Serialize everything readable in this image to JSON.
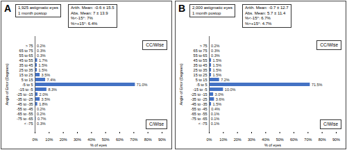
{
  "chart_data": [
    {
      "type": "bar",
      "orientation": "horizontal",
      "title": "A",
      "info": {
        "left": [
          "1,925 astigmatic eyes",
          "1 month postop"
        ],
        "right": [
          "Arith. Mean: -0.6 ± 15.5",
          "Abs. Mean: 7 ± 13.9",
          "%<-15°: 7%",
          "%>+15°: 6.4%"
        ]
      },
      "annotations": [
        "CC/Wise",
        "C/Wise"
      ],
      "xlabel": "% of eyes",
      "ylabel": "Angle of Error (Degrees)",
      "categories": [
        "> 75",
        "65 to 75",
        "55 to 65",
        "45 to 55",
        "35 to 45",
        "25 to 35",
        "15 to 25",
        "5 to 15",
        "-5 to 5",
        "-15 to -5",
        "-25 to -15",
        "-35 to -25",
        "-45 to -35",
        "-55 to -45",
        "-65 to -55",
        "-75 to -65",
        "< -75"
      ],
      "values": [
        0.2,
        0.3,
        0.3,
        1.7,
        1.5,
        1.5,
        3.5,
        7.4,
        71.0,
        8.3,
        2.0,
        3.5,
        1.8,
        0.2,
        0.2,
        0.7,
        0.3
      ],
      "value_labels": [
        "0.2%",
        "0.3%",
        "0.3%",
        "1.7%",
        "1.5%",
        "1.5%",
        "3.5%",
        "7.4%",
        "71.0%",
        "8.3%",
        "2.0%",
        "3.5%",
        "1.8%",
        "0.2%",
        "0.2%",
        "0.7%",
        "0.3%"
      ],
      "data_labels": true,
      "color": "#4472c4",
      "xlim": [
        0,
        90
      ],
      "xticks": [
        {
          "value": 0,
          "label": "0%"
        },
        {
          "value": 10,
          "label": "10%"
        },
        {
          "value": 20,
          "label": "20%"
        },
        {
          "value": 30,
          "label": "30%"
        },
        {
          "value": 40,
          "label": "40%"
        },
        {
          "value": 50,
          "label": "50%"
        },
        {
          "value": 60,
          "label": "60%"
        },
        {
          "value": 70,
          "label": "70%"
        },
        {
          "value": 80,
          "label": "80%"
        },
        {
          "value": 90,
          "label": "90%"
        }
      ],
      "grid": false
    },
    {
      "type": "bar",
      "orientation": "horizontal",
      "title": "B",
      "info": {
        "left": [
          "2,000 astigmatic eyes",
          "1 month postop"
        ],
        "right": [
          "Arith. Mean: -0.7 ± 12.7",
          "Abs. Mean: 5.7 ± 11.4",
          "%<-15°: 6.7%",
          "%>+15°: 4.7%"
        ]
      },
      "annotations": [
        "CC/Wise",
        "C/Wise"
      ],
      "xlabel": "% of eyes",
      "ylabel": "Angle of Error (Degrees)",
      "categories": [
        "> 75",
        "65 to 75",
        "55 to 65",
        "45 to 55",
        "35 to 45",
        "25 to 35",
        "15 to 25",
        "5 to 15",
        "-5 to 5",
        "-15 to -5",
        "-25 to -15",
        "-35 to -25",
        "-45 to -35",
        "-55 to -45",
        "-65 to -55",
        "-75 to -65",
        "< -75"
      ],
      "values": [
        0.2,
        0.3,
        0.3,
        1.5,
        1.5,
        1.5,
        1.5,
        7.2,
        71.5,
        10.0,
        3.0,
        3.6,
        1.5,
        0.4,
        0.1,
        0.1,
        0.1
      ],
      "value_labels": [
        "0.2%",
        "0.3%",
        "0.3%",
        "1.5%",
        "1.5%",
        "1.5%",
        "1.5%",
        "7.2%",
        "71.5%",
        "10.0%",
        "3.0%",
        "3.6%",
        "1.5%",
        "0.4%",
        "0.1%",
        "0.1%",
        "0.1%"
      ],
      "data_labels": true,
      "color": "#4472c4",
      "xlim": [
        0,
        90
      ],
      "xticks": [
        {
          "value": 0,
          "label": "0%"
        },
        {
          "value": 10,
          "label": "10%"
        },
        {
          "value": 20,
          "label": "20%"
        },
        {
          "value": 30,
          "label": "30%"
        },
        {
          "value": 40,
          "label": "40%"
        },
        {
          "value": 50,
          "label": "50%"
        },
        {
          "value": 60,
          "label": "60%"
        },
        {
          "value": 70,
          "label": "70%"
        },
        {
          "value": 80,
          "label": "80%"
        },
        {
          "value": 90,
          "label": "90%"
        }
      ],
      "grid": false
    }
  ]
}
